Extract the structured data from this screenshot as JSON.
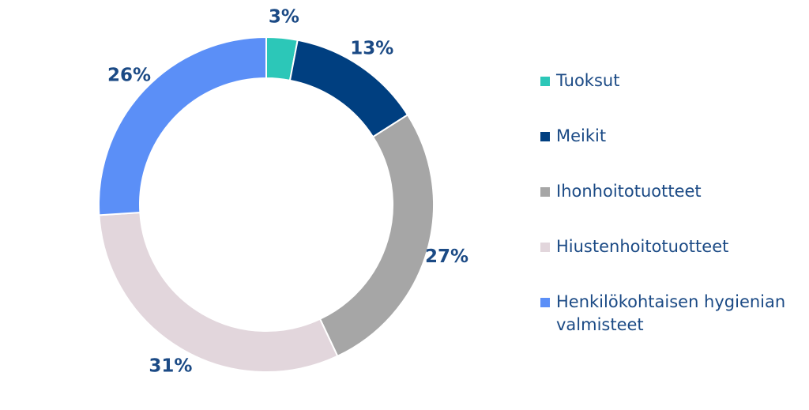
{
  "chart_data": {
    "type": "donut",
    "categories": [
      "Tuoksut",
      "Meikit",
      "Ihonhoitotuotteet",
      "Hiustenhoitotuotteet",
      "Henkilökohtaisen hygienian valmisteet"
    ],
    "values": [
      3,
      13,
      27,
      31,
      26
    ],
    "value_labels": [
      "3%",
      "13%",
      "27%",
      "31%",
      "26%"
    ],
    "colors": [
      "#2cc7b8",
      "#003f80",
      "#a6a6a6",
      "#e2d6dc",
      "#5b8ff7"
    ],
    "legend": "right"
  }
}
